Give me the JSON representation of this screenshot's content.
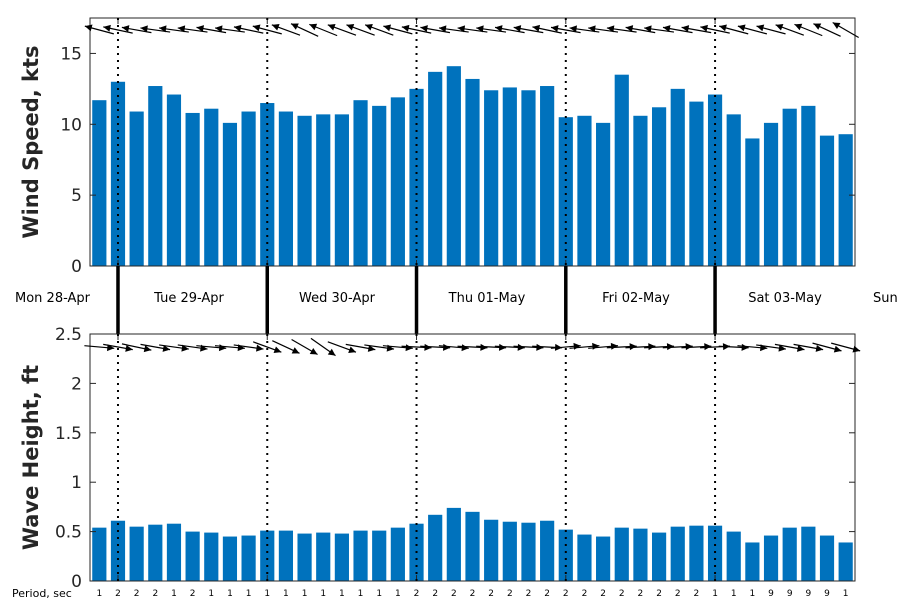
{
  "chart_data": [
    {
      "type": "bar",
      "ylabel": "Wind Speed, kts",
      "ylim": [
        0,
        17.5
      ],
      "yticks": [
        "0",
        "5",
        "10",
        "15"
      ],
      "color": "#0072bd",
      "values": [
        11.7,
        13.0,
        10.9,
        12.7,
        12.1,
        10.8,
        11.1,
        10.1,
        10.9,
        11.5,
        10.9,
        10.6,
        10.7,
        10.7,
        11.7,
        11.3,
        11.9,
        12.5,
        13.7,
        14.1,
        13.2,
        12.4,
        12.6,
        12.4,
        12.7,
        10.5,
        10.6,
        10.1,
        13.5,
        10.6,
        11.2,
        12.5,
        11.6,
        12.1,
        10.7,
        9.0,
        10.1,
        11.1,
        11.3,
        9.2,
        9.3
      ],
      "direction_arrows_deg": [
        165,
        168,
        170,
        172,
        172,
        172,
        170,
        172,
        168,
        165,
        160,
        155,
        158,
        160,
        160,
        160,
        165,
        168,
        170,
        172,
        172,
        172,
        170,
        170,
        168,
        170,
        172,
        172,
        172,
        170,
        172,
        170,
        170,
        168,
        165,
        165,
        165,
        160,
        158,
        155,
        150
      ]
    },
    {
      "type": "bar",
      "ylabel": "Wave Height, ft",
      "ylim": [
        0,
        2.5
      ],
      "yticks": [
        "0",
        "0.5",
        "1",
        "1.5",
        "2",
        "2.5"
      ],
      "color": "#0072bd",
      "values": [
        0.54,
        0.61,
        0.55,
        0.57,
        0.58,
        0.5,
        0.49,
        0.45,
        0.46,
        0.51,
        0.51,
        0.48,
        0.49,
        0.48,
        0.51,
        0.51,
        0.54,
        0.58,
        0.67,
        0.74,
        0.7,
        0.62,
        0.6,
        0.59,
        0.61,
        0.52,
        0.47,
        0.45,
        0.54,
        0.53,
        0.49,
        0.55,
        0.56,
        0.56,
        0.5,
        0.39,
        0.46,
        0.54,
        0.55,
        0.46,
        0.39
      ],
      "direction_arrows_deg": [
        -5,
        -10,
        -12,
        -10,
        -8,
        -8,
        -5,
        -5,
        -8,
        -20,
        -25,
        -30,
        -35,
        -20,
        -10,
        -8,
        -5,
        -3,
        -3,
        -5,
        -3,
        -3,
        -3,
        -3,
        -3,
        5,
        5,
        5,
        3,
        3,
        3,
        3,
        3,
        3,
        -3,
        -5,
        -8,
        -10,
        -10,
        -15,
        -15
      ],
      "period_xlabel": "Period, sec",
      "periods": [
        "1",
        "2",
        "2",
        "2",
        "1",
        "2",
        "1",
        "1",
        "1",
        "1",
        "1",
        "1",
        "1",
        "1",
        "1",
        "1",
        "1",
        "2",
        "2",
        "2",
        "2",
        "2",
        "2",
        "2",
        "2",
        "2",
        "2",
        "2",
        "2",
        "2",
        "2",
        "2",
        "2",
        "1",
        "1",
        "1",
        "9",
        "9",
        "9",
        "9",
        "1"
      ]
    }
  ],
  "day_labels": [
    "Mon 28-Apr",
    "Tue 29-Apr",
    "Wed 30-Apr",
    "Thu 01-May",
    "Fri 02-May",
    "Sat 03-May",
    "Sun"
  ]
}
